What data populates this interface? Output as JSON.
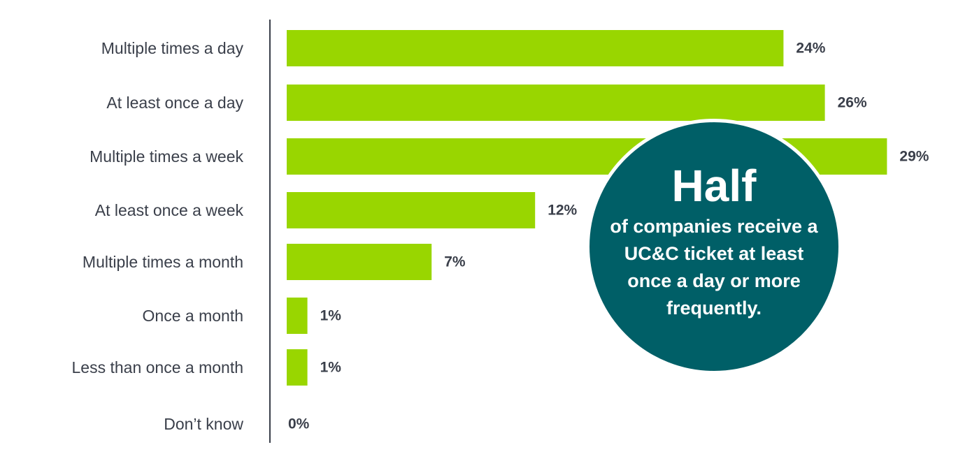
{
  "chart_data": {
    "type": "bar",
    "orientation": "horizontal",
    "categories": [
      "Multiple times a day",
      "At least once a day",
      "Multiple times a week",
      "At least once a week",
      "Multiple times a month",
      "Once a month",
      "Less than once a month",
      "Don’t know"
    ],
    "values": [
      24,
      26,
      29,
      12,
      7,
      1,
      1,
      0
    ],
    "value_labels": [
      "24%",
      "26%",
      "29%",
      "12%",
      "7%",
      "1%",
      "1%",
      "0%"
    ],
    "unit": "%",
    "xlim": [
      0,
      29
    ],
    "grid": false,
    "bar_color": "#99d600",
    "axis_color": "#3a3f4a"
  },
  "callout": {
    "title": "Half",
    "text": "of companies receive a UC&C ticket at least once a day or more frequently.",
    "color": "#005f67"
  }
}
